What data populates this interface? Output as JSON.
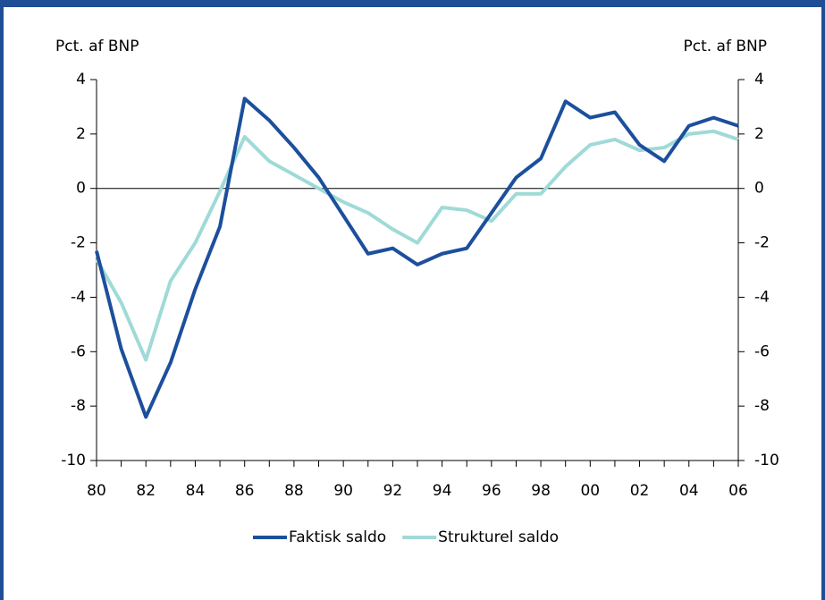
{
  "chart_data": {
    "type": "line",
    "y_label": "Pct. af BNP",
    "y2_label": "Pct. af BNP",
    "categories": [
      "80",
      null,
      "82",
      null,
      "84",
      null,
      "86",
      null,
      "88",
      null,
      "90",
      null,
      "92",
      null,
      "94",
      null,
      "96",
      null,
      "98",
      null,
      "00",
      null,
      "02",
      null,
      "04",
      null,
      "06"
    ],
    "series": [
      {
        "name": "Faktisk saldo",
        "color": "#1c4f9c",
        "values": [
          -2.3,
          -5.9,
          -8.4,
          -6.4,
          -3.7,
          -1.4,
          3.3,
          2.5,
          1.5,
          0.4,
          -1.0,
          -2.4,
          -2.2,
          -2.8,
          -2.4,
          -2.2,
          -0.9,
          0.4,
          1.1,
          3.2,
          2.6,
          2.8,
          1.6,
          1.0,
          2.3,
          2.6,
          2.3
        ]
      },
      {
        "name": "Strukturel saldo",
        "color": "#9fdad7",
        "values": [
          -2.6,
          -4.2,
          -6.3,
          -3.4,
          -2.0,
          -0.1,
          1.9,
          1.0,
          0.5,
          0.0,
          -0.5,
          -0.9,
          -1.5,
          -2.0,
          -0.7,
          -0.8,
          -1.2,
          -0.2,
          -0.2,
          0.8,
          1.6,
          1.8,
          1.4,
          1.5,
          2.0,
          2.1,
          1.8
        ]
      }
    ],
    "ylim": [
      -10,
      4
    ],
    "yticks": [
      -10,
      -8,
      -6,
      -4,
      -2,
      0,
      2,
      4
    ],
    "y2lim": [
      -10,
      4
    ],
    "y2ticks": [
      -10,
      -8,
      -6,
      -4,
      -2,
      0,
      2,
      4
    ],
    "zero_line": true,
    "grid": false,
    "legend": "bottom"
  }
}
